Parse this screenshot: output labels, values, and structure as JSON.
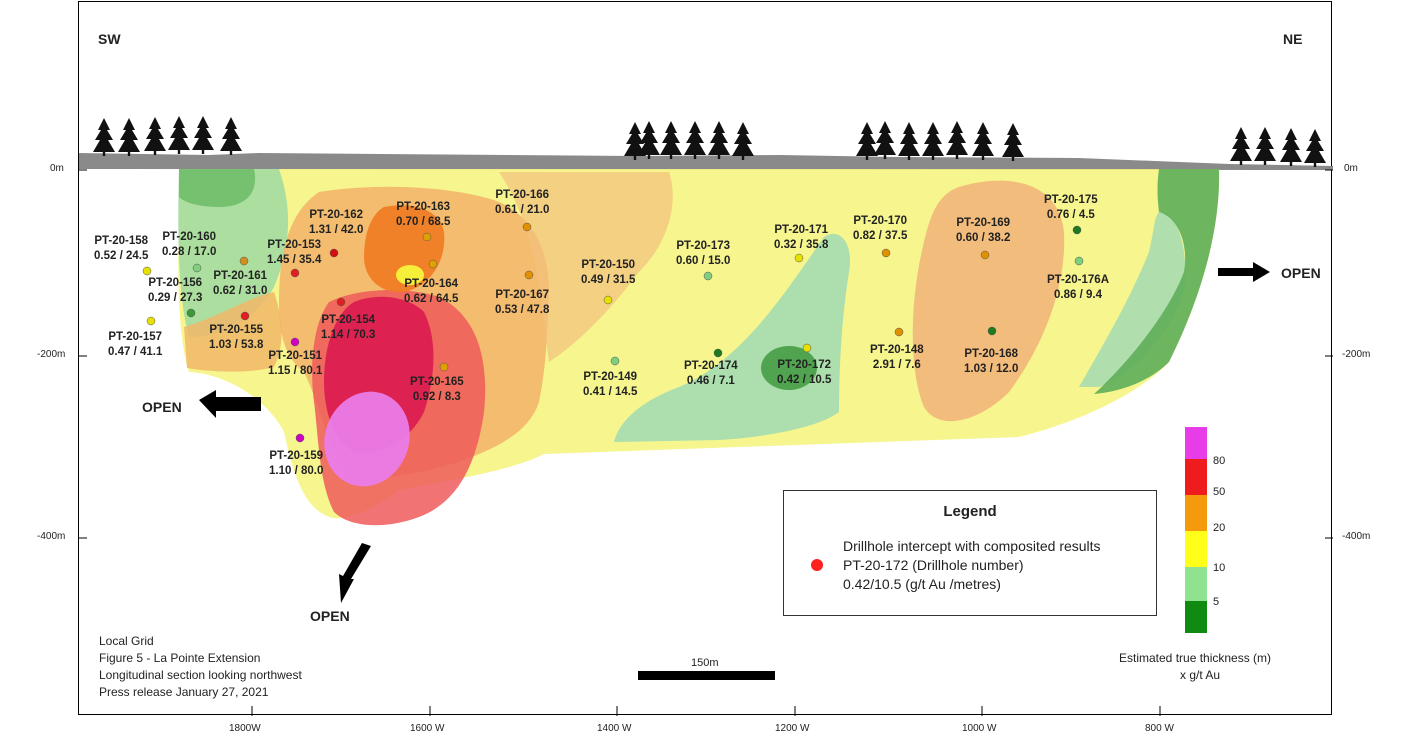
{
  "orientation": {
    "left": "SW",
    "right": "NE"
  },
  "depth_axis": {
    "left_labels": [
      "0m",
      "-200m",
      "-400m"
    ],
    "right_labels": [
      "0m",
      "-200m",
      "-400m"
    ]
  },
  "easting_axis": {
    "labels": [
      "1800W",
      "1600 W",
      "1400 W",
      "1200 W",
      "1000 W",
      "800 W"
    ]
  },
  "open_labels": [
    "OPEN",
    "OPEN",
    "OPEN"
  ],
  "drillholes": [
    {
      "id": "PT-20-158",
      "result": "0.52 / 24.5",
      "color": "#e8e000"
    },
    {
      "id": "PT-20-160",
      "result": "0.28 / 17.0",
      "color": "#7fcf7f"
    },
    {
      "id": "PT-20-156",
      "result": "0.29 / 27.3",
      "color": "#3a9a3a"
    },
    {
      "id": "PT-20-157",
      "result": "0.47 / 41.1",
      "color": "#e8e000"
    },
    {
      "id": "PT-20-161",
      "result": "0.62 / 31.0",
      "color": "#d09020"
    },
    {
      "id": "PT-20-153",
      "result": "1.45 / 35.4",
      "color": "#e02020"
    },
    {
      "id": "PT-20-162",
      "result": "1.31 / 42.0",
      "color": "#d01010"
    },
    {
      "id": "PT-20-155",
      "result": "1.03 / 53.8",
      "color": "#e02020"
    },
    {
      "id": "PT-20-154",
      "result": "1.14 / 70.3",
      "color": "#e02020"
    },
    {
      "id": "PT-20-151",
      "result": "1.15 / 80.1",
      "color": "#d000c0"
    },
    {
      "id": "PT-20-159",
      "result": "1.10 / 80.0",
      "color": "#d000c0"
    },
    {
      "id": "PT-20-163",
      "result": "0.70 / 68.5",
      "color": "#e0a000"
    },
    {
      "id": "PT-20-164",
      "result": "0.62 / 64.5",
      "color": "#e0a000"
    },
    {
      "id": "PT-20-165",
      "result": "0.92 / 8.3",
      "color": "#e0a000"
    },
    {
      "id": "PT-20-166",
      "result": "0.61 / 21.0",
      "color": "#e09000"
    },
    {
      "id": "PT-20-167",
      "result": "0.53 / 47.8",
      "color": "#e09000"
    },
    {
      "id": "PT-20-150",
      "result": "0.49 / 31.5",
      "color": "#e8e000"
    },
    {
      "id": "PT-20-149",
      "result": "0.41 / 14.5",
      "color": "#7fcf7f"
    },
    {
      "id": "PT-20-173",
      "result": "0.60 / 15.0",
      "color": "#7fcf7f"
    },
    {
      "id": "PT-20-174",
      "result": "0.46 / 7.1",
      "color": "#1e7a1e"
    },
    {
      "id": "PT-20-171",
      "result": "0.32 / 35.8",
      "color": "#e8e000"
    },
    {
      "id": "PT-20-172",
      "result": "0.42 / 10.5",
      "color": "#e8e000"
    },
    {
      "id": "PT-20-170",
      "result": "0.82 / 37.5",
      "color": "#e09000"
    },
    {
      "id": "PT-20-148",
      "result": "2.91  / 7.6",
      "color": "#e09000"
    },
    {
      "id": "PT-20-169",
      "result": "0.60 / 38.2",
      "color": "#e09000"
    },
    {
      "id": "PT-20-168",
      "result": "1.03 / 12.0",
      "color": "#1e7a1e"
    },
    {
      "id": "PT-20-175",
      "result": "0.76 / 4.5",
      "color": "#1e7a1e"
    },
    {
      "id": "PT-20-176A",
      "result": "0.86 / 9.4",
      "color": "#7fcf7f"
    }
  ],
  "legend": {
    "title": "Legend",
    "symbol_color": "#ff2020",
    "line1": "Drillhole intercept with composited results",
    "line2": "PT-20-172 (Drillhole number)",
    "line3": "0.42/10.5 (g/t Au /metres)"
  },
  "colorscale": {
    "labels": [
      "80",
      "50",
      "20",
      "10",
      "5"
    ],
    "colors": [
      "#e83ce8",
      "#ee1c1c",
      "#f59a0c",
      "#ffff1a",
      "#8fe38f",
      "#118a11"
    ],
    "caption_line1": "Estimated true thickness (m)",
    "caption_line2": "x g/t Au"
  },
  "scale_bar": {
    "label": "150m"
  },
  "footer": [
    "Local Grid",
    "Figure 5 - La Pointe Extension",
    "Longitudinal section looking northwest",
    "Press release January 27, 2021"
  ]
}
